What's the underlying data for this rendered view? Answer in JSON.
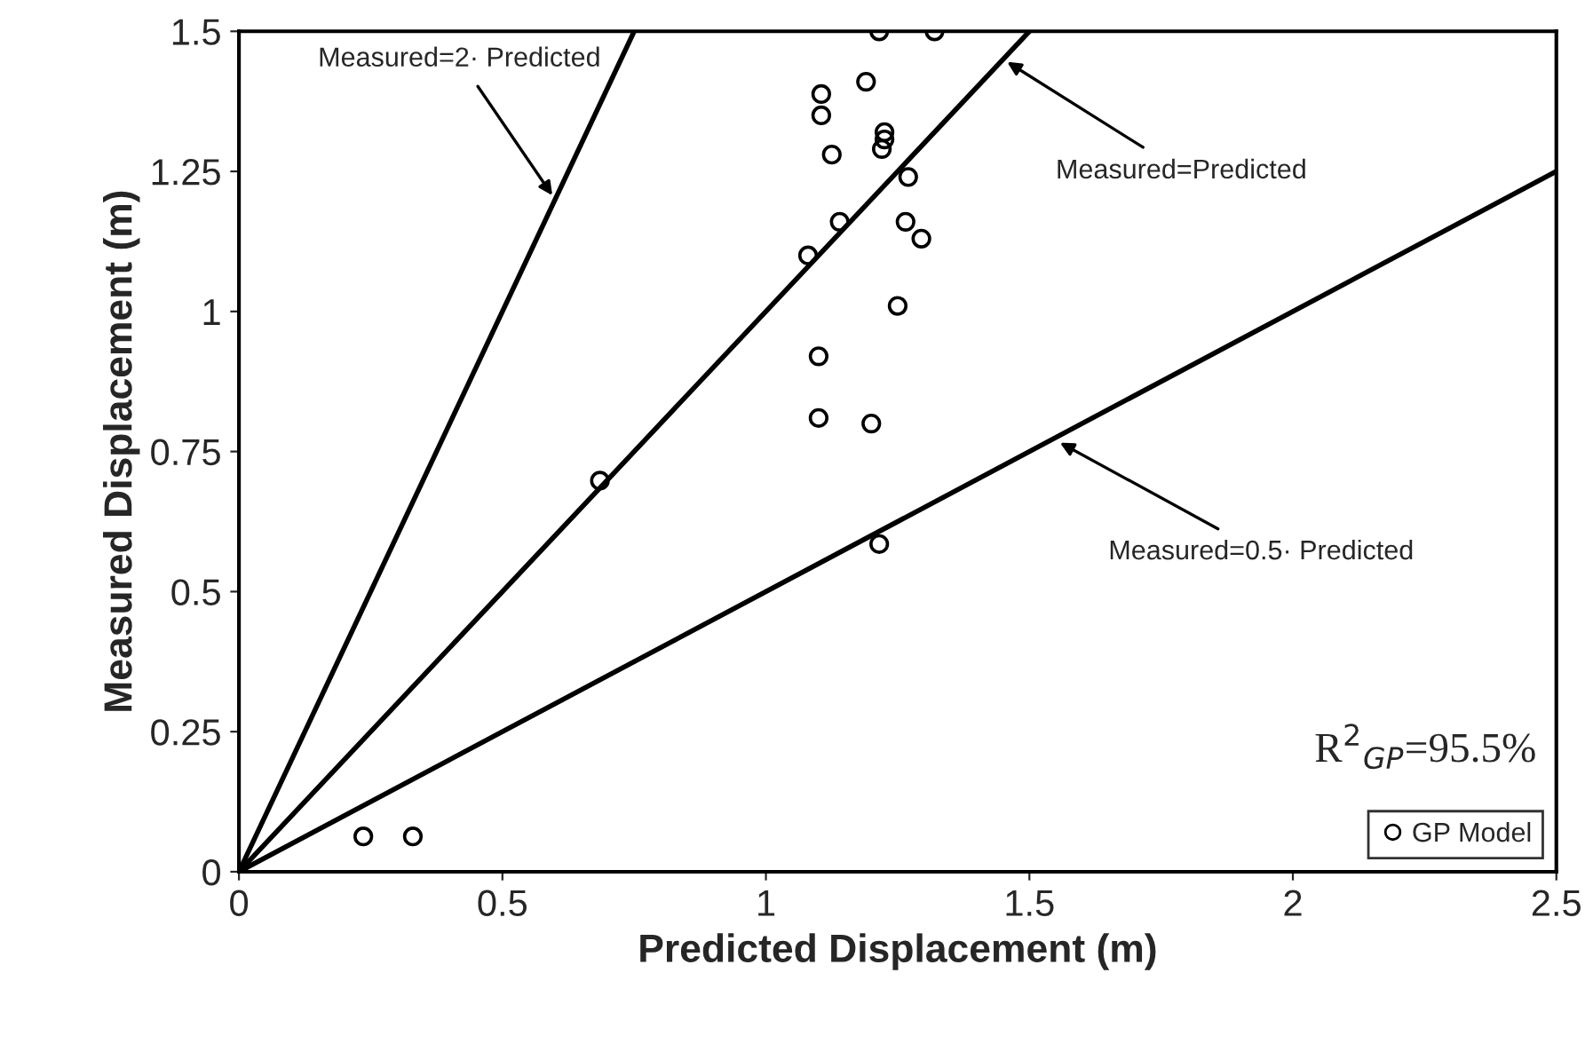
{
  "chart_data": {
    "type": "scatter",
    "xlabel": "Predicted Displacement (m)",
    "ylabel": "Measured Displacement (m)",
    "series": [
      {
        "name": "GP Model",
        "color": "#000000",
        "marker": "circle",
        "x": [
          0.236,
          0.33,
          0.685,
          1.215,
          1.32,
          1.19,
          1.105,
          1.105,
          1.225,
          1.225,
          1.22,
          1.125,
          1.27,
          1.14,
          1.08,
          1.265,
          1.295,
          1.25,
          1.1,
          1.1,
          1.2,
          1.215
        ],
        "values": [
          0.063,
          0.063,
          0.698,
          1.5,
          1.5,
          1.41,
          1.388,
          1.35,
          1.32,
          1.307,
          1.29,
          1.28,
          1.24,
          1.16,
          1.1,
          1.16,
          1.13,
          1.01,
          0.92,
          0.81,
          0.8,
          0.585
        ]
      },
      {
        "type": "line",
        "color": "#000000",
        "line_style": "solid",
        "x": [
          0,
          0.75
        ],
        "values": [
          0,
          1.5
        ]
      },
      {
        "type": "line",
        "color": "#000000",
        "line_style": "solid",
        "x": [
          0,
          1.5
        ],
        "values": [
          0,
          1.5
        ]
      },
      {
        "type": "line",
        "color": "#000000",
        "line_style": "solid",
        "x": [
          0,
          2.5
        ],
        "values": [
          0,
          1.25
        ]
      }
    ],
    "annotations": [
      {
        "text": "Measured=2· Predicted",
        "x": 0.6,
        "y": 1.2
      },
      {
        "text": "Measured=Predicted",
        "x": 1.45,
        "y": 1.45
      },
      {
        "text": "Measured=0.5· Predicted",
        "x": 1.55,
        "y": 0.77
      },
      "R$^{2}$$_{GP}$=95.5%"
    ],
    "xlim": [
      0,
      2.5
    ],
    "ylim": [
      0,
      1.5
    ],
    "xticks": [
      0,
      0.5,
      1,
      1.5,
      2,
      2.5
    ],
    "yticks": [
      0,
      0.25,
      0.5,
      0.75,
      1,
      1.25,
      1.5
    ],
    "grid": false,
    "legend": "bottom right"
  }
}
